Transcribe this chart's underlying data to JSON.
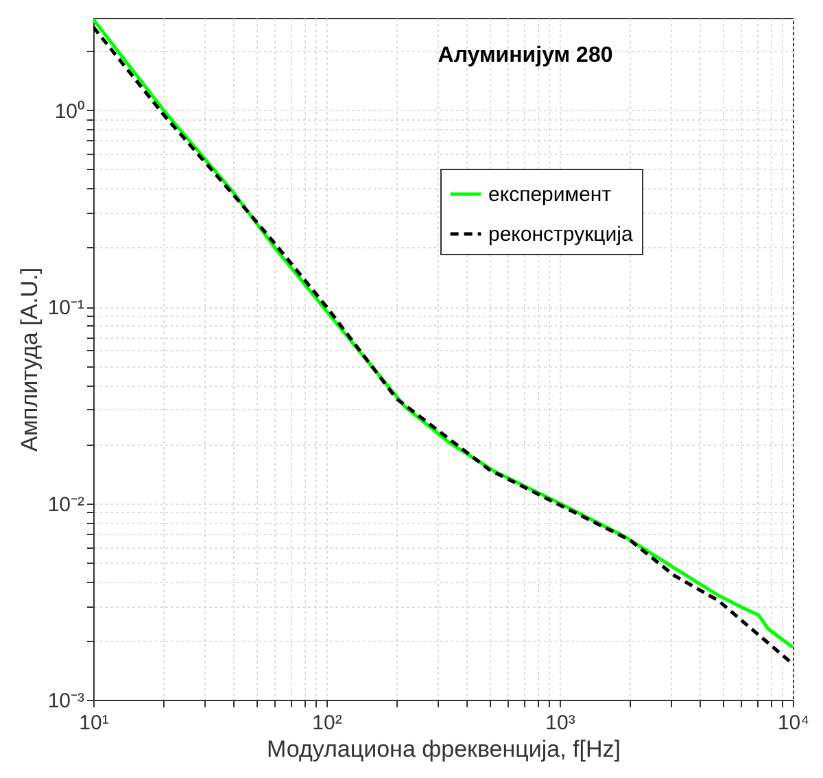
{
  "chart_data": {
    "type": "line",
    "title": "Алуминијум 280",
    "xlabel": "Модулациона фреквенција, f[Hz]",
    "ylabel": "Амплитуда [A.U.]",
    "log": "xy",
    "grid": true,
    "legend": "top right",
    "xlim": [
      10,
      10000
    ],
    "ylim": [
      0.001,
      2.95
    ],
    "xticks": [
      {
        "value": 10,
        "label": "10¹"
      },
      {
        "value": 20,
        "label": null
      },
      {
        "value": 30,
        "label": null
      },
      {
        "value": 40,
        "label": null
      },
      {
        "value": 50,
        "label": null
      },
      {
        "value": 60,
        "label": null
      },
      {
        "value": 70,
        "label": null
      },
      {
        "value": 80,
        "label": null
      },
      {
        "value": 90,
        "label": null
      },
      {
        "value": 100,
        "label": "10²"
      },
      {
        "value": 200,
        "label": null
      },
      {
        "value": 300,
        "label": null
      },
      {
        "value": 400,
        "label": null
      },
      {
        "value": 500,
        "label": null
      },
      {
        "value": 600,
        "label": null
      },
      {
        "value": 700,
        "label": null
      },
      {
        "value": 800,
        "label": null
      },
      {
        "value": 900,
        "label": null
      },
      {
        "value": 1000,
        "label": "10³"
      },
      {
        "value": 2000,
        "label": null
      },
      {
        "value": 3000,
        "label": null
      },
      {
        "value": 4000,
        "label": null
      },
      {
        "value": 5000,
        "label": null
      },
      {
        "value": 6000,
        "label": null
      },
      {
        "value": 7000,
        "label": null
      },
      {
        "value": 8000,
        "label": null
      },
      {
        "value": 9000,
        "label": null
      },
      {
        "value": 10000,
        "label": "10⁴"
      }
    ],
    "yticks": [
      {
        "value": 0.001,
        "label": "10⁻³"
      },
      {
        "value": 0.002,
        "label": null
      },
      {
        "value": 0.003,
        "label": null
      },
      {
        "value": 0.004,
        "label": null
      },
      {
        "value": 0.005,
        "label": null
      },
      {
        "value": 0.006,
        "label": null
      },
      {
        "value": 0.007,
        "label": null
      },
      {
        "value": 0.008,
        "label": null
      },
      {
        "value": 0.009,
        "label": null
      },
      {
        "value": 0.01,
        "label": "10⁻²"
      },
      {
        "value": 0.02,
        "label": null
      },
      {
        "value": 0.03,
        "label": null
      },
      {
        "value": 0.04,
        "label": null
      },
      {
        "value": 0.05,
        "label": null
      },
      {
        "value": 0.06,
        "label": null
      },
      {
        "value": 0.07,
        "label": null
      },
      {
        "value": 0.08,
        "label": null
      },
      {
        "value": 0.09,
        "label": null
      },
      {
        "value": 0.1,
        "label": "10⁻¹"
      },
      {
        "value": 0.2,
        "label": null
      },
      {
        "value": 0.3,
        "label": null
      },
      {
        "value": 0.4,
        "label": null
      },
      {
        "value": 0.5,
        "label": null
      },
      {
        "value": 0.6,
        "label": null
      },
      {
        "value": 0.7,
        "label": null
      },
      {
        "value": 0.8,
        "label": null
      },
      {
        "value": 0.9,
        "label": null
      },
      {
        "value": 1,
        "label": "10⁰"
      },
      {
        "value": 2,
        "label": null
      }
    ],
    "series": [
      {
        "name": "експеримент",
        "color": "#00ff00",
        "line_style": "solid",
        "x": [
          10,
          20,
          40,
          60,
          100,
          217,
          337,
          528,
          1000,
          1890,
          3090,
          4790,
          6240,
          7130,
          7820,
          10000
        ],
        "values": [
          2.9,
          1.0,
          0.38,
          0.2,
          0.095,
          0.031,
          0.0203,
          0.0145,
          0.01,
          0.0068,
          0.0047,
          0.0034,
          0.0029,
          0.0027,
          0.0023,
          0.00185
        ]
      },
      {
        "name": "реконструкција",
        "color": "#000000",
        "line_style": "dashed",
        "x": [
          10,
          20,
          40,
          60,
          100,
          200,
          500,
          1000,
          2000,
          3090,
          4790,
          10000
        ],
        "values": [
          2.65,
          0.95,
          0.37,
          0.21,
          0.1,
          0.034,
          0.0148,
          0.0098,
          0.0065,
          0.0043,
          0.0032,
          0.00152
        ]
      }
    ]
  }
}
